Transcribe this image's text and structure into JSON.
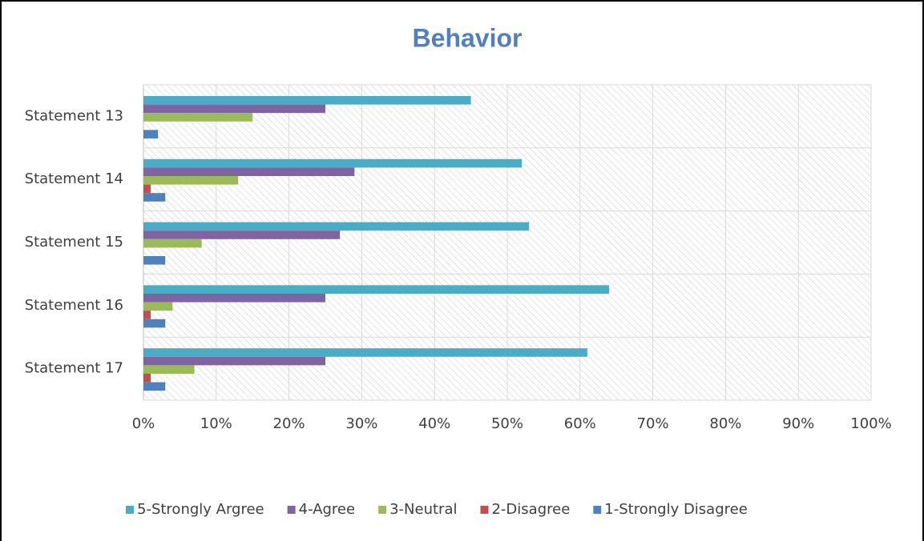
{
  "chart_data": {
    "type": "bar",
    "orientation": "horizontal",
    "title": "Behavior",
    "categories": [
      "Statement 13",
      "Statement 14",
      "Statement 15",
      "Statement 16",
      "Statement 17"
    ],
    "series": [
      {
        "name": "5-Strongly Argree",
        "color": "#4bacc6",
        "values": [
          45,
          52,
          53,
          64,
          61
        ]
      },
      {
        "name": "4-Agree",
        "color": "#8064a2",
        "values": [
          25,
          29,
          27,
          25,
          25
        ]
      },
      {
        "name": "3-Neutral",
        "color": "#9bbb59",
        "values": [
          15,
          13,
          8,
          4,
          7
        ]
      },
      {
        "name": "2-Disagree",
        "color": "#c0504d",
        "values": [
          0,
          1,
          0,
          1,
          1
        ]
      },
      {
        "name": "1-Strongly Disagree",
        "color": "#4f81bd",
        "values": [
          2,
          3,
          3,
          3,
          3
        ]
      }
    ],
    "xlim": [
      0,
      100
    ],
    "xticks": [
      {
        "value": 0,
        "label": "0%"
      },
      {
        "value": 10,
        "label": "10%"
      },
      {
        "value": 20,
        "label": "20%"
      },
      {
        "value": 30,
        "label": "30%"
      },
      {
        "value": 40,
        "label": "40%"
      },
      {
        "value": 50,
        "label": "50%"
      },
      {
        "value": 60,
        "label": "60%"
      },
      {
        "value": 70,
        "label": "70%"
      },
      {
        "value": 80,
        "label": "80%"
      },
      {
        "value": 90,
        "label": "90%"
      },
      {
        "value": 100,
        "label": "100%"
      }
    ],
    "grid": true,
    "legend": "bottom"
  }
}
